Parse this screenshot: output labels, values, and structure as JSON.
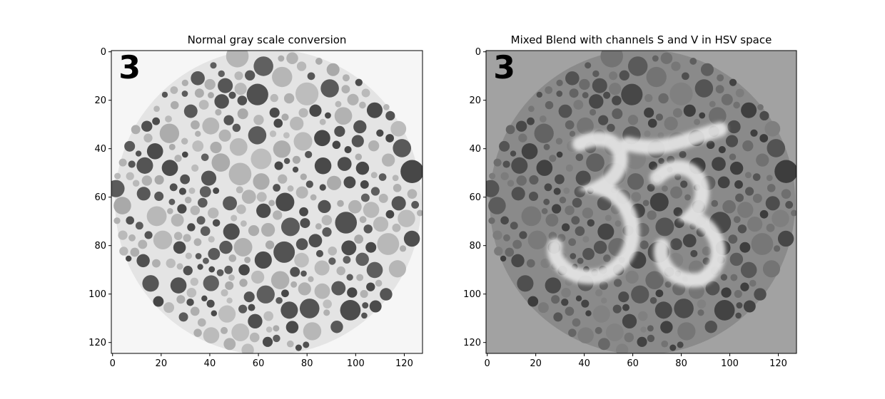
{
  "chart_data": [
    {
      "type": "image",
      "title": "Normal gray scale conversion",
      "image_label": "3",
      "xlim": [
        -0.5,
        127.5
      ],
      "ylim": [
        124.5,
        -0.5
      ],
      "xticks": [
        0,
        20,
        40,
        60,
        80,
        100,
        120
      ],
      "yticks": [
        0,
        20,
        40,
        60,
        80,
        100,
        120
      ]
    },
    {
      "type": "image",
      "title": "Mixed Blend with channels S and V in HSV space",
      "image_label": "3",
      "xlim": [
        -0.5,
        127.5
      ],
      "ylim": [
        124.5,
        -0.5
      ],
      "xticks": [
        0,
        20,
        40,
        60,
        80,
        100,
        120
      ],
      "yticks": [
        0,
        20,
        40,
        60,
        80,
        100,
        120
      ]
    }
  ]
}
